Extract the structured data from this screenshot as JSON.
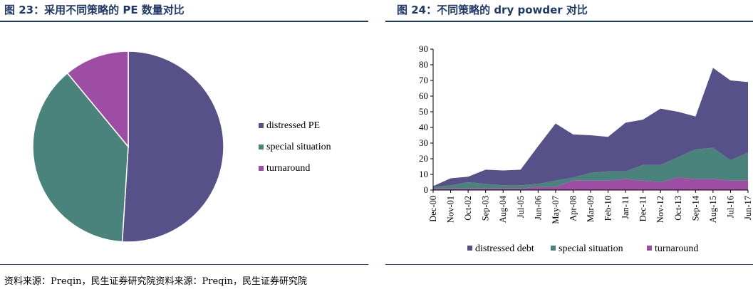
{
  "source_text": "资料来源：Preqin，民生证券研究院资料来源：Preqin，民生证券研究院",
  "colors": {
    "distressed": "#575189",
    "special": "#4a837b",
    "turnaround": "#9e4da5",
    "title": "#1f3a68"
  },
  "chart_data": [
    {
      "type": "pie",
      "title": "图 23：采用不同策略的 PE 数量对比",
      "labels": [
        "distressed PE",
        "special situation",
        "turnaround"
      ],
      "values": [
        51,
        38,
        11
      ],
      "legend_position": "right"
    },
    {
      "type": "area",
      "stacked": true,
      "title": "图 24：不同策略的 dry powder 对比",
      "xlabel": "",
      "ylabel": "",
      "ylim": [
        0,
        90
      ],
      "yticks": [
        0,
        10,
        20,
        30,
        40,
        50,
        60,
        70,
        80,
        90
      ],
      "tick_labels": [
        "Dec-00",
        "Nov-01",
        "Oct-02",
        "Sep-03",
        "Aug-04",
        "Jul-05",
        "Jun-06",
        "May-07",
        "Apr-08",
        "Mar-09",
        "Feb-10",
        "Jan-11",
        "Dec-11",
        "Nov-12",
        "Oct-13",
        "Sep-14",
        "Aug-15",
        "Jul-16",
        "Jun-17"
      ],
      "x": [
        0,
        1,
        2,
        3,
        4,
        5,
        6,
        7,
        8,
        9,
        10,
        11,
        12,
        13,
        14,
        15,
        16,
        17,
        18
      ],
      "series": [
        {
          "name": "turnaround",
          "values": [
            1,
            1,
            1,
            1,
            1,
            1,
            2,
            2,
            6,
            6,
            6,
            7,
            6,
            5,
            8,
            7,
            7,
            6,
            6
          ]
        },
        {
          "name": "special situation",
          "values": [
            1,
            2,
            4,
            3,
            2,
            2,
            2,
            4,
            2,
            5,
            6,
            5,
            10,
            11,
            13,
            19,
            20,
            13,
            18
          ]
        },
        {
          "name": "distressed debt",
          "values": [
            0.5,
            4.5,
            3.5,
            9,
            9.5,
            10,
            24,
            36.5,
            27.5,
            24,
            22,
            31,
            29,
            36,
            29,
            21,
            51,
            51,
            45
          ]
        }
      ],
      "legend": [
        "distressed debt",
        "special situation",
        "turnaround"
      ],
      "legend_position": "bottom"
    }
  ]
}
